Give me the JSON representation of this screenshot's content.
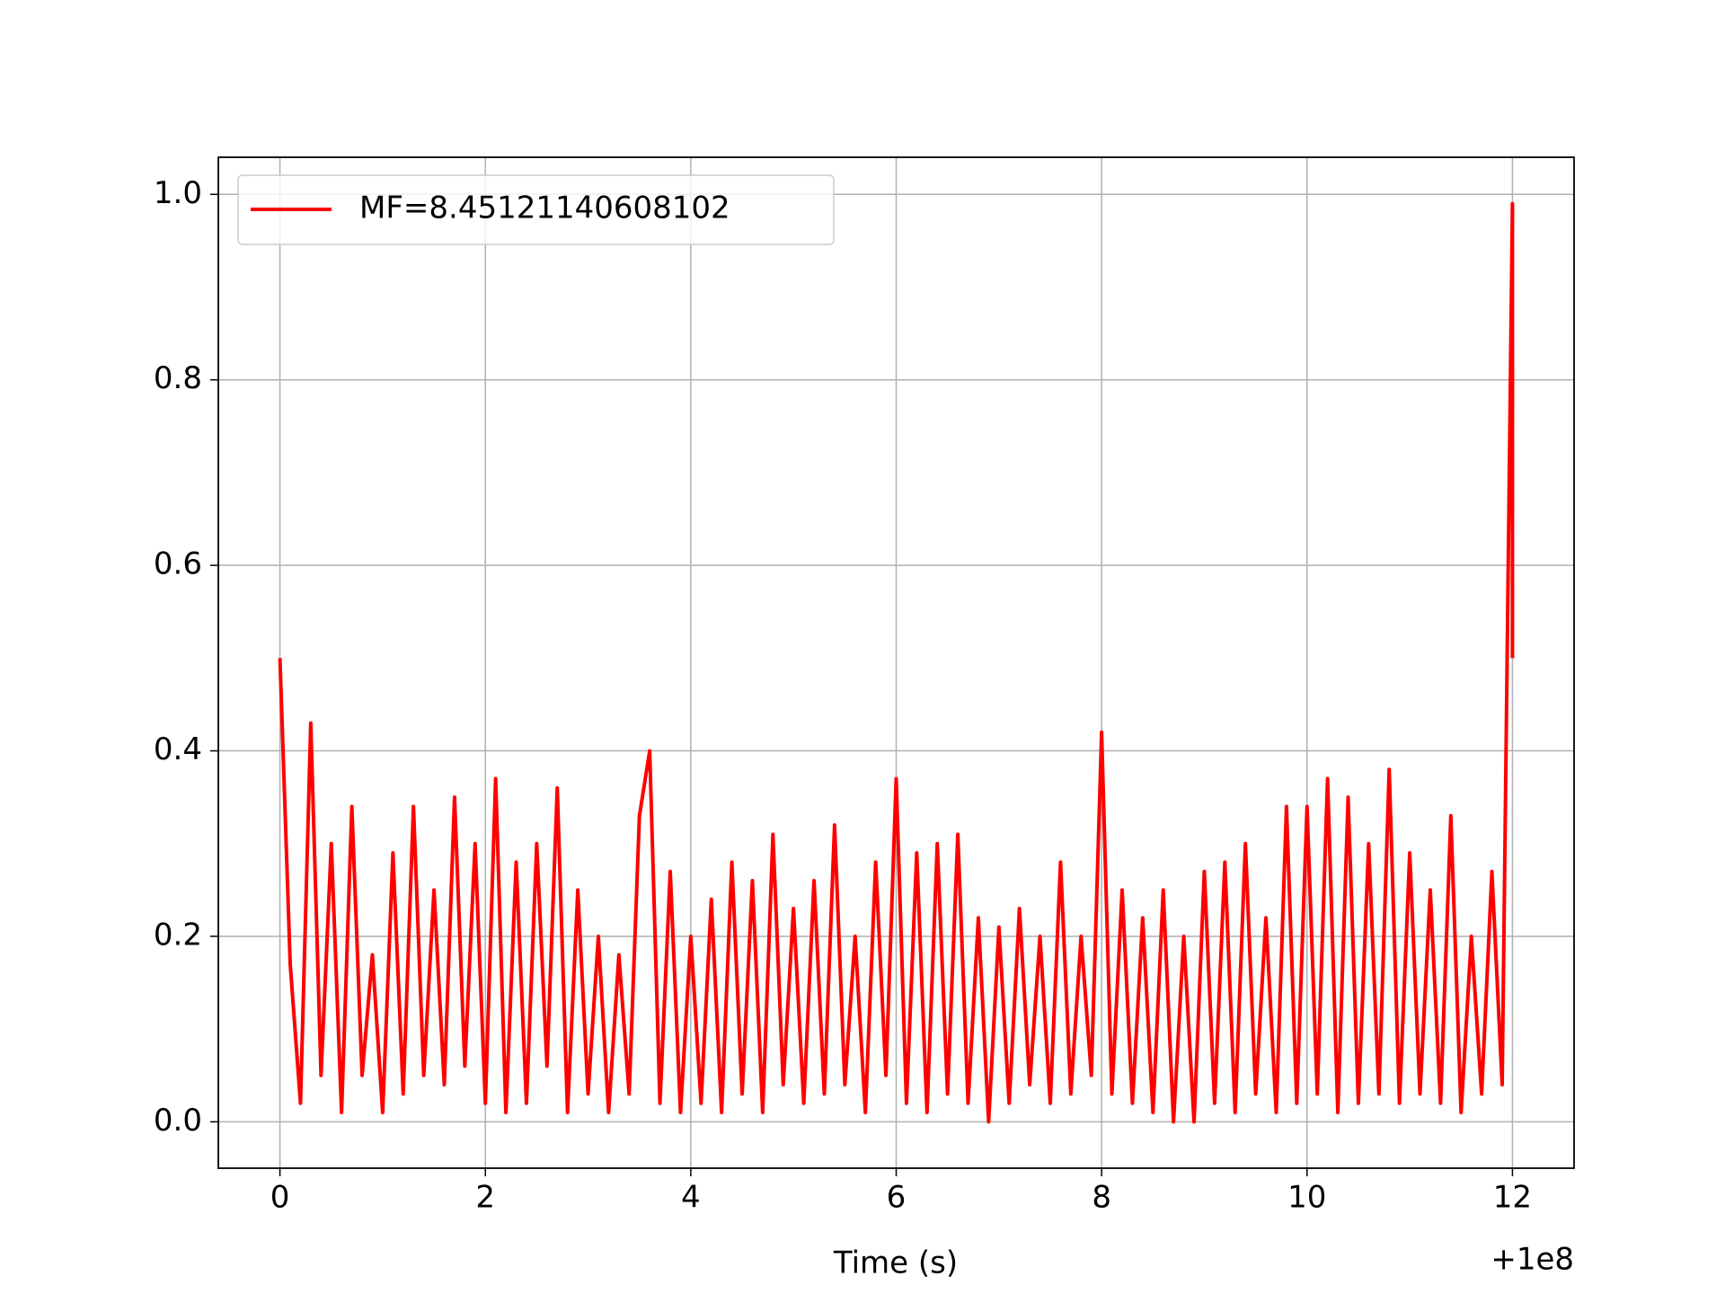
{
  "chart_data": {
    "type": "line",
    "xlabel": "Time (s)",
    "x_offset_label": "+1e8",
    "x": [
      0,
      0.1,
      0.2,
      0.3,
      0.4,
      0.5,
      0.6,
      0.7,
      0.8,
      0.9,
      1.0,
      1.1,
      1.2,
      1.3,
      1.4,
      1.5,
      1.6,
      1.7,
      1.8,
      1.9,
      2.0,
      2.1,
      2.2,
      2.3,
      2.4,
      2.5,
      2.6,
      2.7,
      2.8,
      2.9,
      3.0,
      3.1,
      3.2,
      3.3,
      3.4,
      3.5,
      3.6,
      3.7,
      3.8,
      3.9,
      4.0,
      4.1,
      4.2,
      4.3,
      4.4,
      4.5,
      4.6,
      4.7,
      4.8,
      4.9,
      5.0,
      5.1,
      5.2,
      5.3,
      5.4,
      5.5,
      5.6,
      5.7,
      5.8,
      5.9,
      6.0,
      6.1,
      6.2,
      6.3,
      6.4,
      6.5,
      6.6,
      6.7,
      6.8,
      6.9,
      7.0,
      7.1,
      7.2,
      7.3,
      7.4,
      7.5,
      7.6,
      7.7,
      7.8,
      7.9,
      8.0,
      8.1,
      8.2,
      8.3,
      8.4,
      8.5,
      8.6,
      8.7,
      8.8,
      8.9,
      9.0,
      9.1,
      9.2,
      9.3,
      9.4,
      9.5,
      9.6,
      9.7,
      9.8,
      9.9,
      10.0,
      10.1,
      10.2,
      10.3,
      10.4,
      10.5,
      10.6,
      10.7,
      10.8,
      10.9,
      11.0,
      11.1,
      11.2,
      11.3,
      11.4,
      11.5,
      11.6,
      11.7,
      11.8,
      11.9,
      12.0,
      12.0
    ],
    "series": [
      {
        "name": "MF=8.45121140608102",
        "color": "#ff0000",
        "values": [
          0.5,
          0.17,
          0.02,
          0.43,
          0.05,
          0.3,
          0.01,
          0.34,
          0.05,
          0.18,
          0.01,
          0.29,
          0.03,
          0.34,
          0.05,
          0.25,
          0.04,
          0.35,
          0.06,
          0.3,
          0.02,
          0.37,
          0.01,
          0.28,
          0.02,
          0.3,
          0.06,
          0.36,
          0.01,
          0.25,
          0.03,
          0.2,
          0.01,
          0.18,
          0.03,
          0.33,
          0.4,
          0.02,
          0.27,
          0.01,
          0.2,
          0.02,
          0.24,
          0.01,
          0.28,
          0.03,
          0.26,
          0.01,
          0.31,
          0.04,
          0.23,
          0.02,
          0.26,
          0.03,
          0.32,
          0.04,
          0.2,
          0.01,
          0.28,
          0.05,
          0.37,
          0.02,
          0.29,
          0.01,
          0.3,
          0.03,
          0.31,
          0.02,
          0.22,
          0.0,
          0.21,
          0.02,
          0.23,
          0.04,
          0.2,
          0.02,
          0.28,
          0.03,
          0.2,
          0.05,
          0.42,
          0.03,
          0.25,
          0.02,
          0.22,
          0.01,
          0.25,
          0.0,
          0.2,
          0.0,
          0.27,
          0.02,
          0.28,
          0.01,
          0.3,
          0.03,
          0.22,
          0.01,
          0.34,
          0.02,
          0.34,
          0.03,
          0.37,
          0.01,
          0.35,
          0.02,
          0.3,
          0.03,
          0.38,
          0.02,
          0.29,
          0.03,
          0.25,
          0.02,
          0.33,
          0.01,
          0.2,
          0.03,
          0.27,
          0.04,
          0.99,
          0.5
        ]
      }
    ],
    "xlim": [
      -0.6,
      12.6
    ],
    "ylim": [
      -0.05,
      1.04
    ],
    "xticks": [
      0,
      2,
      4,
      6,
      8,
      10,
      12
    ],
    "yticks": [
      {
        "value": 0,
        "label": "0.0"
      },
      {
        "value": 0.2,
        "label": "0.2"
      },
      {
        "value": 0.4,
        "label": "0.4"
      },
      {
        "value": 0.6,
        "label": "0.6"
      },
      {
        "value": 0.8,
        "label": "0.8"
      },
      {
        "value": 1.0,
        "label": "1.0"
      }
    ],
    "grid": true,
    "legend_loc": "upper left"
  }
}
